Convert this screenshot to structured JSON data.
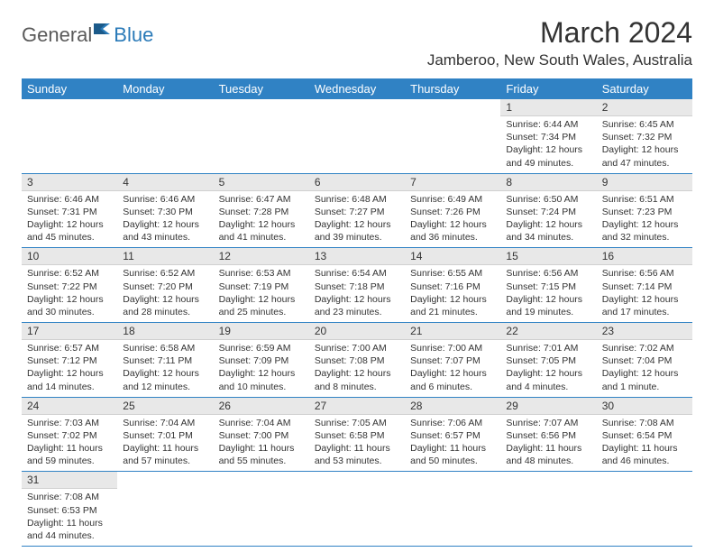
{
  "logo": {
    "general": "General",
    "blue": "Blue"
  },
  "title": "March 2024",
  "location": "Jamberoo, New South Wales, Australia",
  "colors": {
    "header_bg": "#3082c4",
    "header_text": "#ffffff",
    "daynum_bg": "#e8e8e8",
    "border": "#3082c4",
    "logo_gray": "#5a5a5a",
    "logo_blue": "#2a7ab8"
  },
  "weekdays": [
    "Sunday",
    "Monday",
    "Tuesday",
    "Wednesday",
    "Thursday",
    "Friday",
    "Saturday"
  ],
  "weeks": [
    [
      {
        "n": "",
        "sr": "",
        "ss": "",
        "dl": ""
      },
      {
        "n": "",
        "sr": "",
        "ss": "",
        "dl": ""
      },
      {
        "n": "",
        "sr": "",
        "ss": "",
        "dl": ""
      },
      {
        "n": "",
        "sr": "",
        "ss": "",
        "dl": ""
      },
      {
        "n": "",
        "sr": "",
        "ss": "",
        "dl": ""
      },
      {
        "n": "1",
        "sr": "Sunrise: 6:44 AM",
        "ss": "Sunset: 7:34 PM",
        "dl": "Daylight: 12 hours and 49 minutes."
      },
      {
        "n": "2",
        "sr": "Sunrise: 6:45 AM",
        "ss": "Sunset: 7:32 PM",
        "dl": "Daylight: 12 hours and 47 minutes."
      }
    ],
    [
      {
        "n": "3",
        "sr": "Sunrise: 6:46 AM",
        "ss": "Sunset: 7:31 PM",
        "dl": "Daylight: 12 hours and 45 minutes."
      },
      {
        "n": "4",
        "sr": "Sunrise: 6:46 AM",
        "ss": "Sunset: 7:30 PM",
        "dl": "Daylight: 12 hours and 43 minutes."
      },
      {
        "n": "5",
        "sr": "Sunrise: 6:47 AM",
        "ss": "Sunset: 7:28 PM",
        "dl": "Daylight: 12 hours and 41 minutes."
      },
      {
        "n": "6",
        "sr": "Sunrise: 6:48 AM",
        "ss": "Sunset: 7:27 PM",
        "dl": "Daylight: 12 hours and 39 minutes."
      },
      {
        "n": "7",
        "sr": "Sunrise: 6:49 AM",
        "ss": "Sunset: 7:26 PM",
        "dl": "Daylight: 12 hours and 36 minutes."
      },
      {
        "n": "8",
        "sr": "Sunrise: 6:50 AM",
        "ss": "Sunset: 7:24 PM",
        "dl": "Daylight: 12 hours and 34 minutes."
      },
      {
        "n": "9",
        "sr": "Sunrise: 6:51 AM",
        "ss": "Sunset: 7:23 PM",
        "dl": "Daylight: 12 hours and 32 minutes."
      }
    ],
    [
      {
        "n": "10",
        "sr": "Sunrise: 6:52 AM",
        "ss": "Sunset: 7:22 PM",
        "dl": "Daylight: 12 hours and 30 minutes."
      },
      {
        "n": "11",
        "sr": "Sunrise: 6:52 AM",
        "ss": "Sunset: 7:20 PM",
        "dl": "Daylight: 12 hours and 28 minutes."
      },
      {
        "n": "12",
        "sr": "Sunrise: 6:53 AM",
        "ss": "Sunset: 7:19 PM",
        "dl": "Daylight: 12 hours and 25 minutes."
      },
      {
        "n": "13",
        "sr": "Sunrise: 6:54 AM",
        "ss": "Sunset: 7:18 PM",
        "dl": "Daylight: 12 hours and 23 minutes."
      },
      {
        "n": "14",
        "sr": "Sunrise: 6:55 AM",
        "ss": "Sunset: 7:16 PM",
        "dl": "Daylight: 12 hours and 21 minutes."
      },
      {
        "n": "15",
        "sr": "Sunrise: 6:56 AM",
        "ss": "Sunset: 7:15 PM",
        "dl": "Daylight: 12 hours and 19 minutes."
      },
      {
        "n": "16",
        "sr": "Sunrise: 6:56 AM",
        "ss": "Sunset: 7:14 PM",
        "dl": "Daylight: 12 hours and 17 minutes."
      }
    ],
    [
      {
        "n": "17",
        "sr": "Sunrise: 6:57 AM",
        "ss": "Sunset: 7:12 PM",
        "dl": "Daylight: 12 hours and 14 minutes."
      },
      {
        "n": "18",
        "sr": "Sunrise: 6:58 AM",
        "ss": "Sunset: 7:11 PM",
        "dl": "Daylight: 12 hours and 12 minutes."
      },
      {
        "n": "19",
        "sr": "Sunrise: 6:59 AM",
        "ss": "Sunset: 7:09 PM",
        "dl": "Daylight: 12 hours and 10 minutes."
      },
      {
        "n": "20",
        "sr": "Sunrise: 7:00 AM",
        "ss": "Sunset: 7:08 PM",
        "dl": "Daylight: 12 hours and 8 minutes."
      },
      {
        "n": "21",
        "sr": "Sunrise: 7:00 AM",
        "ss": "Sunset: 7:07 PM",
        "dl": "Daylight: 12 hours and 6 minutes."
      },
      {
        "n": "22",
        "sr": "Sunrise: 7:01 AM",
        "ss": "Sunset: 7:05 PM",
        "dl": "Daylight: 12 hours and 4 minutes."
      },
      {
        "n": "23",
        "sr": "Sunrise: 7:02 AM",
        "ss": "Sunset: 7:04 PM",
        "dl": "Daylight: 12 hours and 1 minute."
      }
    ],
    [
      {
        "n": "24",
        "sr": "Sunrise: 7:03 AM",
        "ss": "Sunset: 7:02 PM",
        "dl": "Daylight: 11 hours and 59 minutes."
      },
      {
        "n": "25",
        "sr": "Sunrise: 7:04 AM",
        "ss": "Sunset: 7:01 PM",
        "dl": "Daylight: 11 hours and 57 minutes."
      },
      {
        "n": "26",
        "sr": "Sunrise: 7:04 AM",
        "ss": "Sunset: 7:00 PM",
        "dl": "Daylight: 11 hours and 55 minutes."
      },
      {
        "n": "27",
        "sr": "Sunrise: 7:05 AM",
        "ss": "Sunset: 6:58 PM",
        "dl": "Daylight: 11 hours and 53 minutes."
      },
      {
        "n": "28",
        "sr": "Sunrise: 7:06 AM",
        "ss": "Sunset: 6:57 PM",
        "dl": "Daylight: 11 hours and 50 minutes."
      },
      {
        "n": "29",
        "sr": "Sunrise: 7:07 AM",
        "ss": "Sunset: 6:56 PM",
        "dl": "Daylight: 11 hours and 48 minutes."
      },
      {
        "n": "30",
        "sr": "Sunrise: 7:08 AM",
        "ss": "Sunset: 6:54 PM",
        "dl": "Daylight: 11 hours and 46 minutes."
      }
    ],
    [
      {
        "n": "31",
        "sr": "Sunrise: 7:08 AM",
        "ss": "Sunset: 6:53 PM",
        "dl": "Daylight: 11 hours and 44 minutes."
      },
      {
        "n": "",
        "sr": "",
        "ss": "",
        "dl": ""
      },
      {
        "n": "",
        "sr": "",
        "ss": "",
        "dl": ""
      },
      {
        "n": "",
        "sr": "",
        "ss": "",
        "dl": ""
      },
      {
        "n": "",
        "sr": "",
        "ss": "",
        "dl": ""
      },
      {
        "n": "",
        "sr": "",
        "ss": "",
        "dl": ""
      },
      {
        "n": "",
        "sr": "",
        "ss": "",
        "dl": ""
      }
    ]
  ]
}
